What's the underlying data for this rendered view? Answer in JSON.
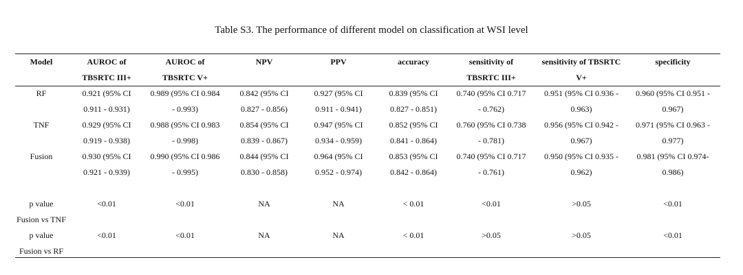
{
  "caption": "Table S3. The performance of different model on classification at WSI level",
  "columns": [
    {
      "line1": "Model",
      "line2": ""
    },
    {
      "line1": "AUROC of",
      "line2": "TBSRTC III+"
    },
    {
      "line1": "AUROC of",
      "line2": "TBSRTC V+"
    },
    {
      "line1": "NPV",
      "line2": ""
    },
    {
      "line1": "PPV",
      "line2": ""
    },
    {
      "line1": "accuracy",
      "line2": ""
    },
    {
      "line1": "sensitivity of",
      "line2": "TBSRTC III+"
    },
    {
      "line1": "sensitivity of TBSRTC",
      "line2": "V+"
    },
    {
      "line1": "specificity",
      "line2": ""
    }
  ],
  "rows": [
    {
      "label": [
        "RF",
        ""
      ],
      "cells": [
        [
          "0.921 (95% CI",
          "0.911 - 0.931)"
        ],
        [
          "0.989 (95% CI 0.984",
          "- 0.993)"
        ],
        [
          "0.842 (95% CI",
          "0.827 - 0.856)"
        ],
        [
          "0.927 (95% CI",
          "0.911 - 0.941)"
        ],
        [
          "0.839 (95% CI",
          "0.827 - 0.851)"
        ],
        [
          "0.740 (95% CI 0.717",
          "- 0.762)"
        ],
        [
          "0.951 (95% CI 0.936 -",
          "0.963)"
        ],
        [
          "0.960 (95% CI 0.951 -",
          "0.967)"
        ]
      ]
    },
    {
      "label": [
        "TNF",
        ""
      ],
      "cells": [
        [
          "0.929 (95% CI",
          "0.919 - 0.938)"
        ],
        [
          "0.988 (95% CI 0.983",
          "- 0.998)"
        ],
        [
          "0.854 (95% CI",
          "0.839 - 0.867)"
        ],
        [
          "0.947 (95% CI",
          "0.934 - 0.959)"
        ],
        [
          "0.852 (95% CI",
          "0.841 - 0.864)"
        ],
        [
          "0.760 (95% CI 0.738",
          "- 0.781)"
        ],
        [
          "0.956 (95% CI 0.942 -",
          "0.967)"
        ],
        [
          "0.971 (95% CI 0.963 -",
          "0.977)"
        ]
      ]
    },
    {
      "label": [
        "Fusion",
        ""
      ],
      "cells": [
        [
          "0.930 (95% CI",
          "0.921 - 0.939)"
        ],
        [
          "0.990 (95% CI 0.986",
          "- 0.995)"
        ],
        [
          "0.844 (95% CI",
          "0.830 - 0.858)"
        ],
        [
          "0.964 (95% CI",
          "0.952 - 0.974)"
        ],
        [
          "0.853 (95% CI",
          "0.842 - 0.864)"
        ],
        [
          "0.740 (95% CI 0.717",
          "- 0.761)"
        ],
        [
          "0.950 (95% CI 0.935 -",
          "0.962)"
        ],
        [
          "0.981 (95% CI 0.974-",
          "0.986)"
        ]
      ]
    },
    {
      "label": [
        "p value",
        "Fusion vs TNF"
      ],
      "cells": [
        [
          "<0.01",
          ""
        ],
        [
          "<0.01",
          ""
        ],
        [
          "NA",
          ""
        ],
        [
          "NA",
          ""
        ],
        [
          "< 0.01",
          ""
        ],
        [
          "<0.01",
          ""
        ],
        [
          ">0.05",
          ""
        ],
        [
          "<0.01",
          ""
        ]
      ]
    },
    {
      "label": [
        "p value",
        "Fusion vs RF"
      ],
      "cells": [
        [
          "<0.01",
          ""
        ],
        [
          "<0.01",
          ""
        ],
        [
          "NA",
          ""
        ],
        [
          "NA",
          ""
        ],
        [
          "< 0.01",
          ""
        ],
        [
          ">0.05",
          ""
        ],
        [
          ">0.05",
          ""
        ],
        [
          "<0.01",
          ""
        ]
      ]
    }
  ]
}
